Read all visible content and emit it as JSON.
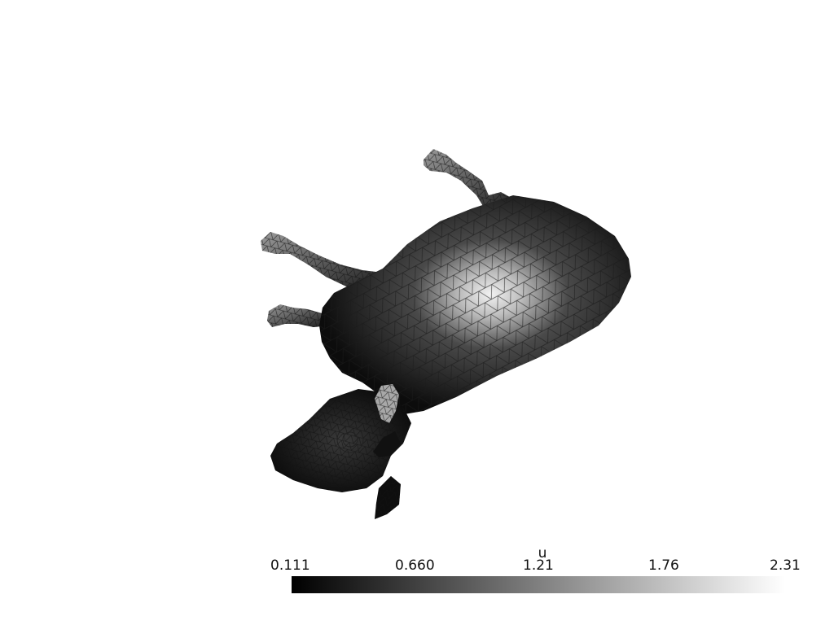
{
  "scalar_bar": {
    "title": "u",
    "ticks": [
      "0.111",
      "0.660",
      "1.21",
      "1.76",
      "2.31"
    ],
    "range": [
      0.111,
      2.31
    ],
    "colormap": [
      "#000000",
      "#ffffff"
    ]
  },
  "colors": {
    "background": "#ffffff",
    "mesh_edge": "#1a1a1a"
  }
}
